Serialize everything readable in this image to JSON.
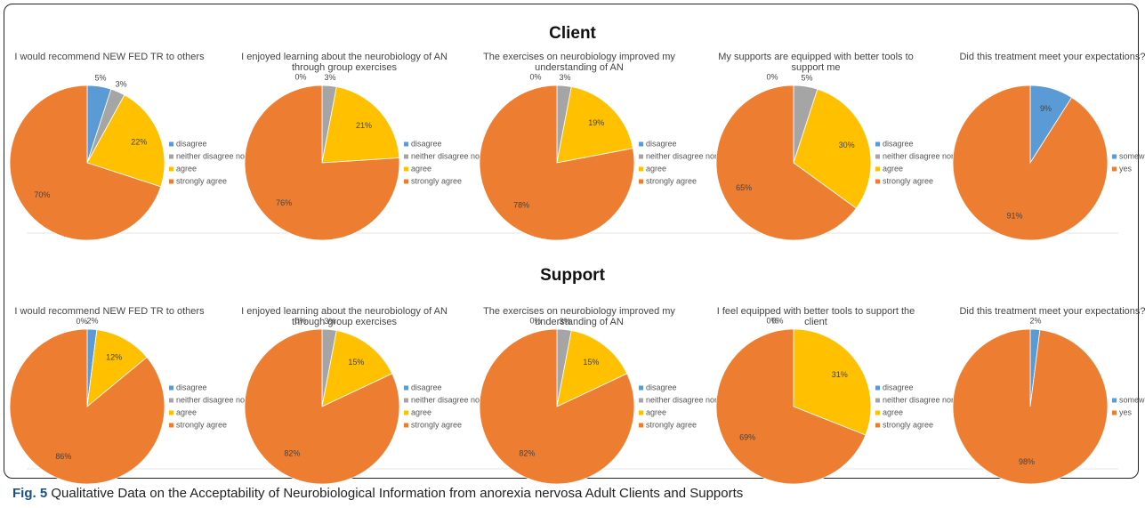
{
  "sections": [
    "Client",
    "Support"
  ],
  "caption": {
    "label": "Fig. 5",
    "text": "Qualitative Data on the Acceptability of Neurobiological Information from anorexia nervosa Adult Clients and Supports"
  },
  "chart_data": [
    {
      "type": "pie",
      "title": "I would recommend NEW FED TR to others",
      "categories": [
        "disagree",
        "neither disagree nor agree",
        "agree",
        "strongly agree"
      ],
      "values": [
        5,
        3,
        22,
        70
      ],
      "value_labels": [
        "5%",
        "3%",
        "22%",
        "70%"
      ],
      "colors": [
        "#5b9bd5",
        "#a5a5a5",
        "#ffc000",
        "#ed7d31"
      ]
    },
    {
      "type": "pie",
      "title": "I enjoyed learning about the neurobiology of AN through group exercises",
      "categories": [
        "disagree",
        "neither disagree nor agree",
        "agree",
        "strongly agree"
      ],
      "values": [
        0,
        3,
        21,
        76
      ],
      "value_labels": [
        "0%",
        "3%",
        "21%",
        "76%"
      ],
      "colors": [
        "#5b9bd5",
        "#a5a5a5",
        "#ffc000",
        "#ed7d31"
      ]
    },
    {
      "type": "pie",
      "title": "The exercises on neurobiology improved my understanding of AN",
      "categories": [
        "disagree",
        "neither disagree nor agree",
        "agree",
        "strongly agree"
      ],
      "values": [
        0,
        3,
        19,
        78
      ],
      "value_labels": [
        "0%",
        "3%",
        "19%",
        "78%"
      ],
      "colors": [
        "#5b9bd5",
        "#a5a5a5",
        "#ffc000",
        "#ed7d31"
      ]
    },
    {
      "type": "pie",
      "title": "My supports are equipped with better tools to support me",
      "categories": [
        "disagree",
        "neither disagree nor agree",
        "agree",
        "strongly agree"
      ],
      "values": [
        0,
        5,
        30,
        65
      ],
      "value_labels": [
        "0%",
        "5%",
        "30%",
        "65%"
      ],
      "colors": [
        "#5b9bd5",
        "#a5a5a5",
        "#ffc000",
        "#ed7d31"
      ]
    },
    {
      "type": "pie",
      "title": "Did this treatment meet your expectations?",
      "categories": [
        "somewhat",
        "yes"
      ],
      "values": [
        9,
        91
      ],
      "value_labels": [
        "9%",
        "91%"
      ],
      "colors": [
        "#5b9bd5",
        "#ed7d31"
      ]
    },
    {
      "type": "pie",
      "title": "I would recommend NEW FED TR to others",
      "categories": [
        "disagree",
        "neither disagree nor agree",
        "agree",
        "strongly agree"
      ],
      "values": [
        2,
        0,
        12,
        86
      ],
      "value_labels": [
        "2%",
        "0%",
        "12%",
        "86%"
      ],
      "colors": [
        "#5b9bd5",
        "#a5a5a5",
        "#ffc000",
        "#ed7d31"
      ]
    },
    {
      "type": "pie",
      "title": "I enjoyed learning about the neurobiology of AN through group exercises",
      "categories": [
        "disagree",
        "neither disagree nor agree",
        "agree",
        "strongly agree"
      ],
      "values": [
        0,
        3,
        15,
        82
      ],
      "value_labels": [
        "0%",
        "3%",
        "15%",
        "82%"
      ],
      "colors": [
        "#5b9bd5",
        "#a5a5a5",
        "#ffc000",
        "#ed7d31"
      ]
    },
    {
      "type": "pie",
      "title": "The exercises on neurobiology improved my understanding of AN",
      "categories": [
        "disagree",
        "neither disagree nor agree",
        "agree",
        "strongly agree"
      ],
      "values": [
        0,
        3,
        15,
        82
      ],
      "value_labels": [
        "0%",
        "3%",
        "15%",
        "82%"
      ],
      "colors": [
        "#5b9bd5",
        "#a5a5a5",
        "#ffc000",
        "#ed7d31"
      ]
    },
    {
      "type": "pie",
      "title": "I feel equipped with better tools to support the client",
      "categories": [
        "disagree",
        "neither disagree nor agree",
        "agree",
        "strongly agree"
      ],
      "values": [
        0,
        0,
        31,
        69
      ],
      "value_labels": [
        "0%",
        "0%",
        "31%",
        "69%"
      ],
      "colors": [
        "#5b9bd5",
        "#a5a5a5",
        "#ffc000",
        "#ed7d31"
      ]
    },
    {
      "type": "pie",
      "title": "Did this treatment meet your expectations?",
      "categories": [
        "somewhat",
        "yes"
      ],
      "values": [
        2,
        98
      ],
      "value_labels": [
        "2%",
        "98%"
      ],
      "colors": [
        "#5b9bd5",
        "#ed7d31"
      ]
    }
  ]
}
